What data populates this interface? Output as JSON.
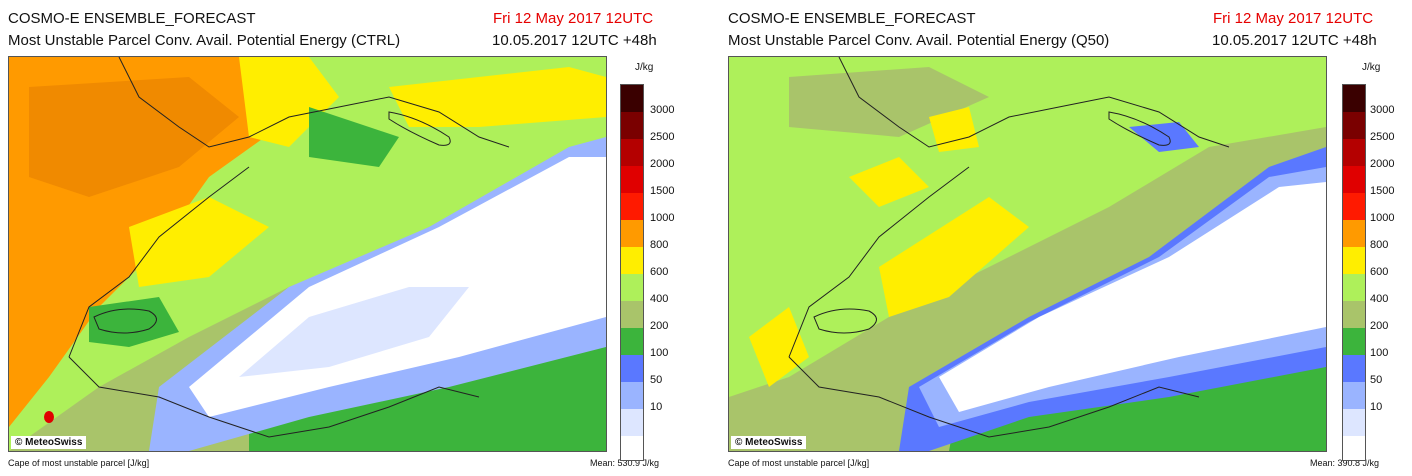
{
  "panels": [
    {
      "title": "COSMO-E ENSEMBLE_FORECAST",
      "subtitle": "Most Unstable Parcel Conv. Avail. Potential Energy (CTRL)",
      "valid": "Fri 12 May 2017 12UTC",
      "run": "10.05.2017 12UTC +48h",
      "footer_left": "Cape of most unstable parcel [J/kg]",
      "footer_right": "Mean:  530.9 J/kg",
      "copyright": "© MeteoSwiss"
    },
    {
      "title": "COSMO-E ENSEMBLE_FORECAST",
      "subtitle": "Most Unstable Parcel Conv. Avail. Potential Energy (Q50)",
      "valid": "Fri 12 May 2017 12UTC",
      "run": "10.05.2017 12UTC +48h",
      "footer_left": "Cape of most unstable parcel [J/kg]",
      "footer_right": "Mean:  390.8 J/kg",
      "copyright": "© MeteoSwiss"
    }
  ],
  "colorbar": {
    "unit": "J/kg",
    "levels": [
      "3000",
      "2500",
      "2000",
      "1500",
      "1000",
      "800",
      "600",
      "400",
      "200",
      "100",
      "50",
      "10"
    ],
    "colors": [
      "#3a0000",
      "#7a0000",
      "#b40000",
      "#e00000",
      "#ff1a00",
      "#ff9a00",
      "#ffee00",
      "#aef05a",
      "#a9c46a",
      "#3cb43c",
      "#5a78ff",
      "#9ab4ff",
      "#dde6ff",
      "#ffffff"
    ]
  }
}
